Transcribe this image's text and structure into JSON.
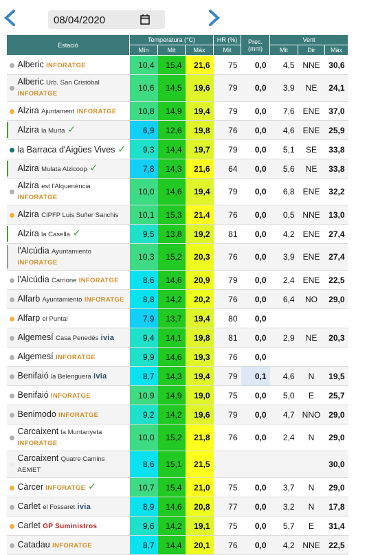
{
  "nav": {
    "date": "08/04/2020"
  },
  "table": {
    "header": {
      "station": "Estació",
      "temperature": "Temperatura (°C)",
      "humidity": "HR (%)",
      "precipitation": "Prec. (mm)",
      "wind": "Vent",
      "sub": [
        "Mín",
        "Mit",
        "Màx",
        "Mit",
        "Mit",
        "Dir",
        "Màx"
      ]
    },
    "rows": [
      {
        "name": "Alberic",
        "source": "INFORATGE",
        "marker": "gray",
        "cells": [
          "10,4",
          "15,4",
          "21,6",
          "75",
          "0,0",
          "4,5",
          "NNE",
          "30,6"
        ]
      },
      {
        "name": "Alberic",
        "place": "Urb. San Cristóbal",
        "source": "INFORATGE",
        "marker": "gray",
        "cells": [
          "10,6",
          "14,5",
          "19,6",
          "79",
          "0,0",
          "3,9",
          "NE",
          "24,1"
        ]
      },
      {
        "name": "Alzira",
        "place": "Ajuntament",
        "source": "INFORATGE",
        "marker": "orange",
        "cells": [
          "10,8",
          "14,9",
          "19,4",
          "79",
          "0,0",
          "7,6",
          "ENE",
          "37,0"
        ]
      },
      {
        "name": "Alzira",
        "place": "la Murta",
        "verified": true,
        "marker": "bar-green",
        "cells": [
          "6,9",
          "12,6",
          "19,8",
          "76",
          "0,0",
          "4,6",
          "ENE",
          "25,9"
        ]
      },
      {
        "name": "la Barraca d'Aigües Vives",
        "verified": true,
        "marker": "teal",
        "cells": [
          "9,3",
          "14,4",
          "19,7",
          "79",
          "0,0",
          "5,1",
          "SE",
          "33,8"
        ]
      },
      {
        "name": "Alzira",
        "place": "Mulata Alzicoop",
        "verified": true,
        "marker": "bar-green",
        "cells": [
          "7,8",
          "14,3",
          "21,6",
          "64",
          "0,0",
          "5,6",
          "NE",
          "33,8"
        ]
      },
      {
        "name": "Alzira",
        "place": "est l'Alquenència",
        "source": "INFORATGE",
        "marker": "gray",
        "cells": [
          "10,0",
          "14,6",
          "19,4",
          "79",
          "0,0",
          "6,8",
          "ENE",
          "32,2"
        ]
      },
      {
        "name": "Alzira",
        "place": "CIPFP Luis Suñer Sanchis",
        "marker": "orange",
        "cells": [
          "10,1",
          "15,3",
          "21,4",
          "76",
          "0,0",
          "0,5",
          "NNE",
          "13,0"
        ]
      },
      {
        "name": "Alzira",
        "place": "la Casella",
        "verified": true,
        "marker": "bar-green",
        "cells": [
          "9,5",
          "13,8",
          "19,2",
          "81",
          "0,0",
          "4,2",
          "ENE",
          "27,4"
        ]
      },
      {
        "name": "l'Alcúdia",
        "place": "Ayuntamiento",
        "source": "INFORATGE",
        "marker": "bar-gray",
        "cells": [
          "10,3",
          "15,2",
          "20,3",
          "76",
          "0,0",
          "3,9",
          "ENE",
          "27,4"
        ]
      },
      {
        "name": "l'Alcúdia",
        "place": "Carrione",
        "source": "INFORATGE",
        "marker": "gray",
        "cells": [
          "8,6",
          "14,6",
          "20,9",
          "79",
          "0,0",
          "2,4",
          "ENE",
          "22,5"
        ]
      },
      {
        "name": "Alfarb",
        "place": "Ayuntamiento",
        "source": "INFORATGE",
        "marker": "gray",
        "cells": [
          "8,8",
          "14,2",
          "20,2",
          "76",
          "0,0",
          "6,4",
          "NO",
          "29,0"
        ]
      },
      {
        "name": "Alfarp",
        "place": "el Puntal",
        "marker": "orange",
        "cells": [
          "7,9",
          "13,7",
          "19,4",
          "80",
          "0,0",
          null,
          null,
          null
        ]
      },
      {
        "name": "Algemesí",
        "place": "Casa Penedés",
        "source": "ivia",
        "marker": "gray",
        "cells": [
          "9,4",
          "14,1",
          "19,8",
          "81",
          "0,0",
          "2,9",
          "NE",
          "20,3"
        ]
      },
      {
        "name": "Algemesí",
        "source": "INFORATGE",
        "marker": "gray",
        "cells": [
          "9,9",
          "14,6",
          "19,3",
          "76",
          "0,0",
          null,
          null,
          null
        ]
      },
      {
        "name": "Benifaió",
        "place": "la Belenguera",
        "source": "ivia",
        "marker": "gray",
        "cells": [
          "8,7",
          "14,3",
          "19,4",
          "79",
          "0,1",
          "4,6",
          "N",
          "19,5"
        ]
      },
      {
        "name": "Benifaió",
        "source": "INFORATGE",
        "marker": "gray",
        "cells": [
          "10,9",
          "14,9",
          "19,0",
          "75",
          "0,0",
          "5,0",
          "E",
          "25,7"
        ]
      },
      {
        "name": "Benimodo",
        "source": "INFORATGE",
        "marker": "gray",
        "cells": [
          "9,2",
          "14,2",
          "19,6",
          "79",
          "0,0",
          "4,7",
          "NNO",
          "29,0"
        ]
      },
      {
        "name": "Carcaixent",
        "place": "la Muntanyeta",
        "source": "INFORATGE",
        "marker": "gray",
        "cells": [
          "10,0",
          "15,2",
          "21,8",
          "76",
          "0,0",
          "2,4",
          "N",
          "29,0"
        ]
      },
      {
        "name": "Carcaixent",
        "place": "Quatre Camins",
        "source": "AEMET",
        "marker": "star",
        "cells": [
          "8,6",
          "15,1",
          "21,5",
          null,
          null,
          null,
          null,
          "30,0"
        ]
      },
      {
        "name": "Càrcer",
        "source": "INFORATGE",
        "verified": true,
        "marker": "orange",
        "cells": [
          "10,7",
          "15,4",
          "21,0",
          "75",
          "0,0",
          "3,7",
          "N",
          "29,0"
        ]
      },
      {
        "name": "Carlet",
        "place": "el Fossaret",
        "source": "ivia",
        "marker": "gray",
        "cells": [
          "8,9",
          "14,6",
          "20,8",
          "77",
          "0,0",
          "3,2",
          "N",
          "17,8"
        ]
      },
      {
        "name": "Carlet",
        "source": "GP Suministros",
        "marker": "orange",
        "cells": [
          "9,6",
          "14,2",
          "19,1",
          "75",
          "0,0",
          "5,7",
          "E",
          "31,4"
        ]
      },
      {
        "name": "Catadau",
        "source": "INFORATGE",
        "marker": "gray",
        "cells": [
          "8,7",
          "14,4",
          "20,1",
          "76",
          "0,0",
          "4,2",
          "NNE",
          "22,5"
        ]
      }
    ]
  }
}
